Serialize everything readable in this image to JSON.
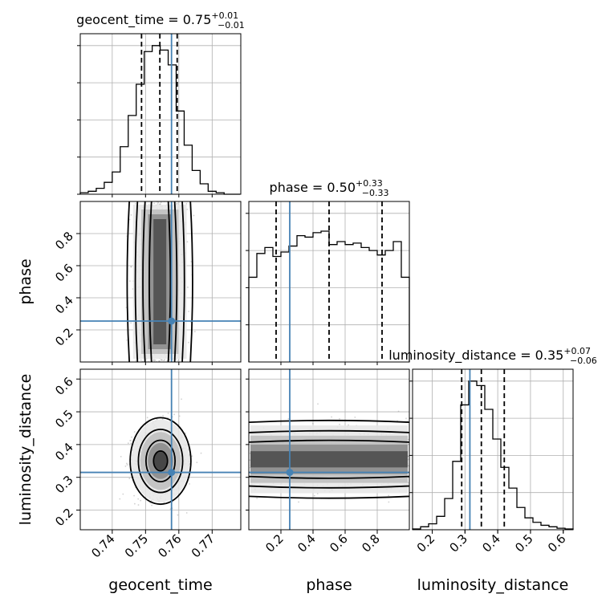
{
  "chart_data": {
    "type": "corner",
    "parameters": [
      "geocent_time",
      "phase",
      "luminosity_distance"
    ],
    "truth": {
      "geocent_time": 0.7578,
      "phase": 0.255,
      "luminosity_distance": 0.315
    },
    "colors": {
      "truth": "#4682b4",
      "hist": "#000000",
      "grid": "#b0b0b0"
    },
    "diagonal": [
      {
        "param": "geocent_time",
        "title_label": "geocent_time",
        "median": "0.75",
        "plus": "+0.01",
        "minus": "−0.01",
        "quantiles": [
          0.7488,
          0.7543,
          0.7595
        ],
        "xlim": [
          0.7304,
          0.7786
        ],
        "ylim": [
          0,
          1.08
        ],
        "edges": [
          0.7304,
          0.7328,
          0.7352,
          0.7376,
          0.74,
          0.7424,
          0.7448,
          0.7472,
          0.7496,
          0.752,
          0.7544,
          0.7568,
          0.7592,
          0.7616,
          0.764,
          0.7664,
          0.7688,
          0.7712,
          0.7736,
          0.776,
          0.7784
        ],
        "counts": [
          0.01,
          0.02,
          0.04,
          0.08,
          0.15,
          0.32,
          0.53,
          0.74,
          0.96,
          1.0,
          0.97,
          0.87,
          0.56,
          0.33,
          0.16,
          0.07,
          0.02,
          0.01,
          0.0,
          0.0
        ],
        "yticks": [
          0.0,
          0.25,
          0.5,
          0.75,
          1.0
        ]
      },
      {
        "param": "phase",
        "title_label": "phase",
        "median": "0.50",
        "plus": "+0.33",
        "minus": "−0.33",
        "quantiles": [
          0.17,
          0.5,
          0.83
        ],
        "xlim": [
          0.0,
          1.0
        ],
        "ylim": [
          0,
          1.08
        ],
        "edges": [
          0.0,
          0.05,
          0.1,
          0.15,
          0.2,
          0.25,
          0.3,
          0.35,
          0.4,
          0.45,
          0.5,
          0.55,
          0.6,
          0.65,
          0.7,
          0.75,
          0.8,
          0.85,
          0.9,
          0.95,
          1.0
        ],
        "counts": [
          0.57,
          0.73,
          0.77,
          0.71,
          0.74,
          0.78,
          0.85,
          0.84,
          0.87,
          0.88,
          0.79,
          0.81,
          0.79,
          0.8,
          0.77,
          0.75,
          0.72,
          0.75,
          0.81,
          0.57
        ],
        "yticks": [
          0.25,
          0.5,
          0.75,
          1.0
        ]
      },
      {
        "param": "luminosity_distance",
        "title_label": "luminosity_distance",
        "median": "0.35",
        "plus": "+0.07",
        "minus": "−0.06",
        "quantiles": [
          0.29,
          0.35,
          0.42
        ],
        "xlim": [
          0.14,
          0.63
        ],
        "ylim": [
          0,
          1.08
        ],
        "edges": [
          0.14,
          0.1645,
          0.189,
          0.2135,
          0.238,
          0.2625,
          0.287,
          0.3115,
          0.336,
          0.3605,
          0.385,
          0.4095,
          0.434,
          0.4585,
          0.483,
          0.5075,
          0.532,
          0.5565,
          0.581,
          0.6055,
          0.63
        ],
        "counts": [
          0.005,
          0.02,
          0.04,
          0.09,
          0.21,
          0.46,
          0.84,
          1.0,
          0.97,
          0.81,
          0.61,
          0.42,
          0.28,
          0.15,
          0.08,
          0.05,
          0.03,
          0.02,
          0.01,
          0.005
        ],
        "yticks": [
          0.25,
          0.5,
          0.75,
          1.0
        ]
      }
    ],
    "axes": {
      "geocent_time": {
        "range": [
          0.7304,
          0.7786
        ],
        "ticks": [
          0.74,
          0.75,
          0.76,
          0.77
        ],
        "ticklabels": [
          "0.74",
          "0.75",
          "0.76",
          "0.77"
        ],
        "label": "geocent_time"
      },
      "phase": {
        "range": [
          0.0,
          1.0
        ],
        "ticks": [
          0.2,
          0.4,
          0.6,
          0.8
        ],
        "ticklabels": [
          "0.2",
          "0.4",
          "0.6",
          "0.8"
        ],
        "label": "phase"
      },
      "luminosity_distance": {
        "range": [
          0.14,
          0.63
        ],
        "ticks": [
          0.2,
          0.3,
          0.4,
          0.5,
          0.6
        ],
        "ticklabels": [
          "0.2",
          "0.3",
          "0.4",
          "0.5",
          "0.6"
        ],
        "label": "luminosity_distance"
      }
    },
    "off_diagonal": [
      {
        "x": "geocent_time",
        "y": "phase",
        "center": [
          0.7543,
          0.5
        ],
        "sigma": [
          0.0035,
          0.3
        ],
        "shape": "vertical-band"
      },
      {
        "x": "geocent_time",
        "y": "luminosity_distance",
        "center": [
          0.7545,
          0.35
        ],
        "sigma": [
          0.0038,
          0.055
        ],
        "shape": "blob"
      },
      {
        "x": "phase",
        "y": "luminosity_distance",
        "center": [
          0.5,
          0.355
        ],
        "sigma": [
          0.3,
          0.045
        ],
        "shape": "horizontal-band"
      }
    ],
    "grid": true
  }
}
